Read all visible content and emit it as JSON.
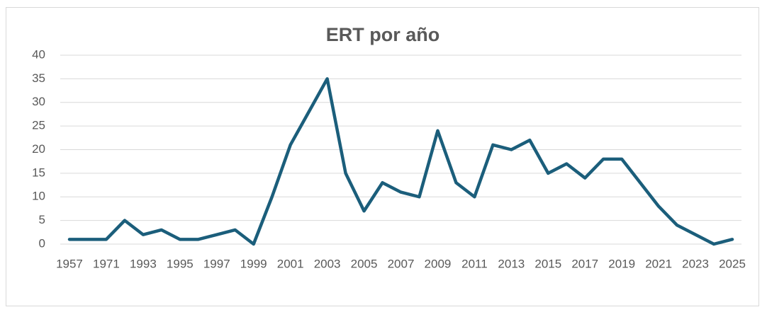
{
  "chart_data": {
    "type": "line",
    "title": "ERT por año",
    "categories": [
      "1957",
      null,
      "1971",
      null,
      "1993",
      null,
      "1995",
      null,
      "1997",
      null,
      "1999",
      null,
      "2001",
      null,
      "2003",
      null,
      "2005",
      null,
      "2007",
      null,
      "2009",
      null,
      "2011",
      null,
      "2013",
      null,
      "2015",
      null,
      "2017",
      null,
      "2019",
      null,
      "2021",
      null,
      "2023",
      null,
      "2025"
    ],
    "values": [
      1,
      1,
      1,
      5,
      2,
      3,
      1,
      1,
      2,
      3,
      0,
      10,
      21,
      28,
      35,
      15,
      7,
      13,
      11,
      10,
      24,
      13,
      10,
      21,
      20,
      22,
      15,
      17,
      14,
      18,
      18,
      13,
      8,
      4,
      2,
      0,
      1
    ],
    "color": "#1b5e7b",
    "ylim": [
      0,
      40
    ],
    "yticks": [
      0,
      5,
      10,
      15,
      20,
      25,
      30,
      35,
      40
    ],
    "grid": true
  }
}
